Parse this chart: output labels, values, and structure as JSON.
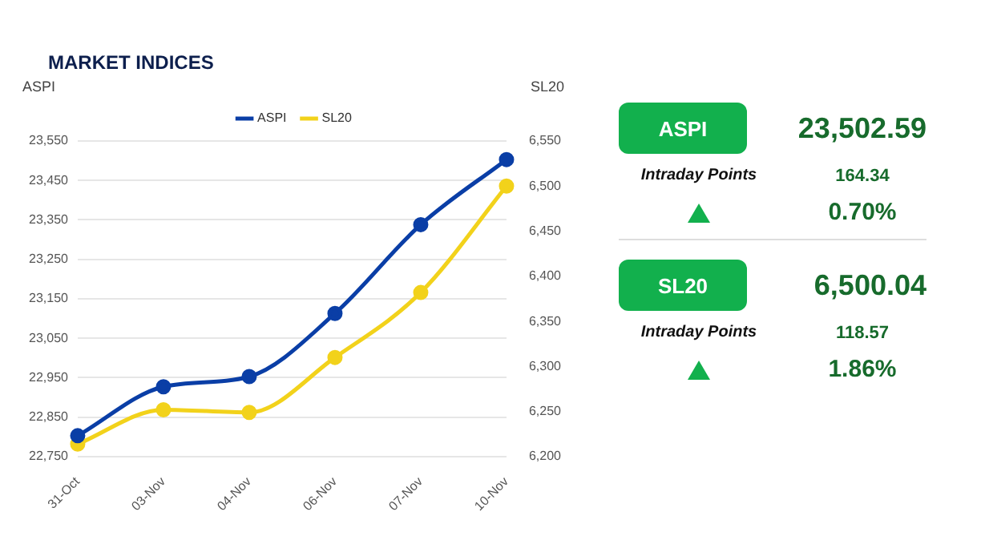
{
  "chart_data": [
    {
      "type": "line",
      "title": "MARKET INDICES",
      "ylabel": "ASPI",
      "y2label": "SL20",
      "categories": [
        "31-Oct",
        "03-Nov",
        "04-Nov",
        "06-Nov",
        "07-Nov",
        "10-Nov"
      ],
      "series": [
        {
          "name": "ASPI",
          "color": "#0a3ea6",
          "values": [
            22803,
            22927,
            22953,
            23113,
            23338,
            23503
          ]
        },
        {
          "name": "SL20",
          "color": "#f2d21b",
          "axis": "y2",
          "values": [
            6214,
            6252,
            6249,
            6310,
            6382,
            6500
          ]
        }
      ],
      "ylim": [
        22750,
        23550
      ],
      "yticks": [
        {
          "value": 22750,
          "label": "22,750"
        },
        {
          "value": 22850,
          "label": "22,850"
        },
        {
          "value": 22950,
          "label": "22,950"
        },
        {
          "value": 23050,
          "label": "23,050"
        },
        {
          "value": 23150,
          "label": "23,150"
        },
        {
          "value": 23250,
          "label": "23,250"
        },
        {
          "value": 23350,
          "label": "23,350"
        },
        {
          "value": 23450,
          "label": "23,450"
        },
        {
          "value": 23550,
          "label": "23,550"
        }
      ],
      "y2lim": [
        6200,
        6550
      ],
      "y2ticks": [
        {
          "value": 6200,
          "label": "6,200"
        },
        {
          "value": 6250,
          "label": "6,250"
        },
        {
          "value": 6300,
          "label": "6,300"
        },
        {
          "value": 6350,
          "label": "6,350"
        },
        {
          "value": 6400,
          "label": "6,400"
        },
        {
          "value": 6450,
          "label": "6,450"
        },
        {
          "value": 6500,
          "label": "6,500"
        },
        {
          "value": 6550,
          "label": "6,550"
        }
      ],
      "grid": "y",
      "legend": "top",
      "marker": "circle",
      "line_style": "solid"
    },
    {
      "type": "other",
      "annotations": [
        "ASPI",
        "23,502.59",
        "Intraday Points",
        "164.34",
        "0.70%",
        "SL20",
        "6,500.04",
        "Intraday Points",
        "118.57",
        "1.86%"
      ]
    }
  ]
}
